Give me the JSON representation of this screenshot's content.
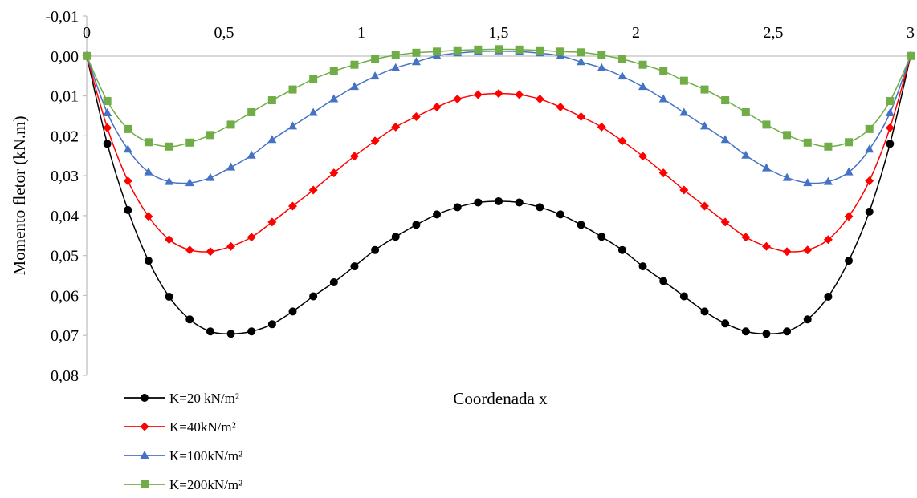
{
  "chart_data": {
    "type": "line",
    "xlabel": "Coordenada x",
    "ylabel": "Momento fletor  (kN.m)",
    "xlim": [
      0,
      3
    ],
    "ylim": [
      -0.01,
      0.08
    ],
    "y_inverted": true,
    "x_ticks": [
      0,
      0.5,
      1,
      1.5,
      2,
      2.5,
      3
    ],
    "x_tick_labels": [
      "0",
      "0,5",
      "1",
      "1,5",
      "2",
      "2,5",
      "3"
    ],
    "y_ticks": [
      -0.01,
      0,
      0.01,
      0.02,
      0.03,
      0.04,
      0.05,
      0.06,
      0.07,
      0.08
    ],
    "y_tick_labels": [
      "-0,01",
      "0,00",
      "0,01",
      "0,02",
      "0,03",
      "0,04",
      "0,05",
      "0,06",
      "0,07",
      "0,08"
    ],
    "grid": false,
    "legend_position": "bottom-left",
    "x": [
      0,
      0.075,
      0.15,
      0.225,
      0.3,
      0.375,
      0.45,
      0.525,
      0.6,
      0.675,
      0.75,
      0.825,
      0.9,
      0.975,
      1.05,
      1.125,
      1.2,
      1.275,
      1.35,
      1.425,
      1.5,
      1.575,
      1.65,
      1.725,
      1.8,
      1.875,
      1.95,
      2.025,
      2.1,
      2.175,
      2.25,
      2.325,
      2.4,
      2.475,
      2.55,
      2.625,
      2.7,
      2.775,
      2.85,
      2.925,
      3.0
    ],
    "series": [
      {
        "name": "K=20 kN/m²",
        "color": "#000000",
        "marker": "circle",
        "values": [
          0.0,
          0.022,
          0.0386,
          0.0513,
          0.0603,
          0.066,
          0.069,
          0.0696,
          0.069,
          0.0672,
          0.064,
          0.0602,
          0.0567,
          0.0527,
          0.0486,
          0.0453,
          0.0423,
          0.0397,
          0.0379,
          0.0367,
          0.0364,
          0.0367,
          0.0379,
          0.0397,
          0.0423,
          0.0453,
          0.0486,
          0.0527,
          0.0564,
          0.0602,
          0.064,
          0.067,
          0.069,
          0.0696,
          0.069,
          0.066,
          0.0603,
          0.0513,
          0.039,
          0.022,
          0.0
        ]
      },
      {
        "name": "K=40kN/m²",
        "color": "#ff0000",
        "marker": "diamond",
        "values": [
          0.0,
          0.018,
          0.0313,
          0.0402,
          0.046,
          0.0486,
          0.049,
          0.0477,
          0.0454,
          0.0416,
          0.0376,
          0.0336,
          0.0293,
          0.0251,
          0.0213,
          0.0178,
          0.0152,
          0.0128,
          0.0108,
          0.0097,
          0.0094,
          0.0097,
          0.0108,
          0.0128,
          0.0152,
          0.0178,
          0.0213,
          0.0251,
          0.0293,
          0.0336,
          0.0376,
          0.0416,
          0.0454,
          0.0477,
          0.049,
          0.0486,
          0.046,
          0.0402,
          0.0313,
          0.018,
          0.0
        ]
      },
      {
        "name": "K=100kN/m²",
        "color": "#4472c4",
        "marker": "triangle",
        "values": [
          0.0,
          0.0143,
          0.0234,
          0.0291,
          0.0315,
          0.0318,
          0.0305,
          0.0279,
          0.0249,
          0.021,
          0.0176,
          0.0142,
          0.0108,
          0.0077,
          0.0051,
          0.003,
          0.0015,
          0.0,
          -0.0007,
          -0.0011,
          -0.0012,
          -0.0011,
          -0.0007,
          0.0,
          0.0015,
          0.003,
          0.0051,
          0.0077,
          0.0108,
          0.0142,
          0.0176,
          0.021,
          0.0249,
          0.0281,
          0.0305,
          0.0318,
          0.0315,
          0.0291,
          0.0234,
          0.0143,
          0.0
        ]
      },
      {
        "name": "K=200kN/m²",
        "color": "#70ad47",
        "marker": "square",
        "values": [
          0.0,
          0.0113,
          0.0183,
          0.0216,
          0.0227,
          0.0217,
          0.0198,
          0.0172,
          0.0141,
          0.0111,
          0.0084,
          0.0058,
          0.0038,
          0.0022,
          0.0008,
          -0.0002,
          -0.0008,
          -0.0011,
          -0.0014,
          -0.0016,
          -0.0017,
          -0.0016,
          -0.0014,
          -0.0011,
          -0.0009,
          -0.0002,
          0.0008,
          0.0022,
          0.0038,
          0.0062,
          0.0084,
          0.0111,
          0.0141,
          0.0172,
          0.0198,
          0.0217,
          0.0227,
          0.0216,
          0.0183,
          0.0113,
          0.0
        ]
      }
    ]
  }
}
